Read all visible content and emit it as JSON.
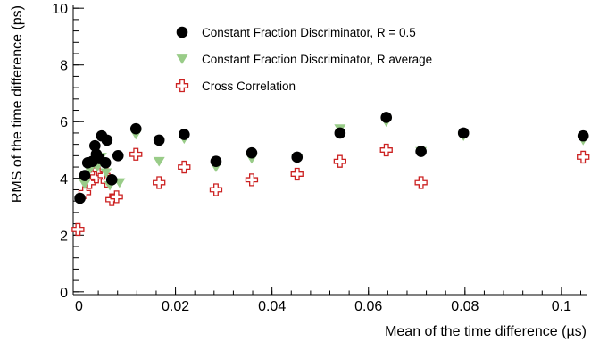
{
  "chart_data": {
    "type": "scatter",
    "xlabel": "Mean of the time difference (µs)",
    "ylabel": "RMS of the time difference (ps)",
    "xlim": [
      -0.0012,
      0.1052
    ],
    "ylim": [
      -0.1,
      10.1
    ],
    "x_ticks": [
      0,
      0.02,
      0.04,
      0.06,
      0.08,
      0.1
    ],
    "x_tick_labels": [
      "0",
      "0.02",
      "0.04",
      "0.06",
      "0.08",
      "0.1"
    ],
    "y_ticks": [
      0,
      2,
      4,
      6,
      8,
      10
    ],
    "y_tick_labels": [
      "0",
      "2",
      "4",
      "6",
      "8",
      "10"
    ],
    "grid": false,
    "legend_position": "top-center",
    "series": [
      {
        "name": "Constant Fraction Discriminator, R = 0.5",
        "marker": "filled-circle",
        "color": "#000000",
        "points": [
          [
            0.0002,
            3.3
          ],
          [
            0.0012,
            4.1
          ],
          [
            0.0018,
            4.55
          ],
          [
            0.0028,
            4.6
          ],
          [
            0.0033,
            5.15
          ],
          [
            0.0036,
            4.85
          ],
          [
            0.0042,
            4.7
          ],
          [
            0.0047,
            5.5
          ],
          [
            0.0055,
            4.55
          ],
          [
            0.0058,
            5.35
          ],
          [
            0.0068,
            3.95
          ],
          [
            0.0081,
            4.8
          ],
          [
            0.0118,
            5.75
          ],
          [
            0.0166,
            5.35
          ],
          [
            0.0218,
            5.55
          ],
          [
            0.0284,
            4.6
          ],
          [
            0.0358,
            4.9
          ],
          [
            0.0452,
            4.75
          ],
          [
            0.0541,
            5.6
          ],
          [
            0.0637,
            6.15
          ],
          [
            0.0709,
            4.95
          ],
          [
            0.0797,
            5.6
          ],
          [
            0.1045,
            5.5
          ]
        ]
      },
      {
        "name": "Constant Fraction Discriminator, R average",
        "marker": "filled-triangle-down",
        "color": "#99cc88",
        "points": [
          [
            0.0012,
            3.8
          ],
          [
            0.0022,
            4.3
          ],
          [
            0.0032,
            4.6
          ],
          [
            0.0038,
            4.4
          ],
          [
            0.0046,
            4.75
          ],
          [
            0.0056,
            4.2
          ],
          [
            0.0064,
            3.75
          ],
          [
            0.0084,
            3.85
          ],
          [
            0.0118,
            5.55
          ],
          [
            0.0166,
            4.6
          ],
          [
            0.0218,
            5.4
          ],
          [
            0.0284,
            4.4
          ],
          [
            0.0358,
            4.7
          ],
          [
            0.0452,
            4.7
          ],
          [
            0.0541,
            5.75
          ],
          [
            0.0637,
            6.0
          ],
          [
            0.0709,
            4.95
          ],
          [
            0.0797,
            5.5
          ],
          [
            0.1045,
            5.35
          ]
        ]
      },
      {
        "name": "Cross Correlation",
        "marker": "open-cross",
        "color": "#cc2222",
        "points": [
          [
            -0.0002,
            2.2
          ],
          [
            0.0012,
            3.5
          ],
          [
            0.0022,
            3.85
          ],
          [
            0.003,
            4.15
          ],
          [
            0.0036,
            4.05
          ],
          [
            0.0041,
            4.3
          ],
          [
            0.0048,
            4.45
          ],
          [
            0.0052,
            4.1
          ],
          [
            0.0058,
            3.9
          ],
          [
            0.0068,
            3.25
          ],
          [
            0.0078,
            3.35
          ],
          [
            0.0118,
            4.85
          ],
          [
            0.0166,
            3.85
          ],
          [
            0.0218,
            4.4
          ],
          [
            0.0284,
            3.6
          ],
          [
            0.0358,
            3.95
          ],
          [
            0.0452,
            4.15
          ],
          [
            0.0541,
            4.6
          ],
          [
            0.0637,
            5.0
          ],
          [
            0.0709,
            3.85
          ],
          [
            0.1045,
            4.75
          ]
        ]
      }
    ]
  }
}
